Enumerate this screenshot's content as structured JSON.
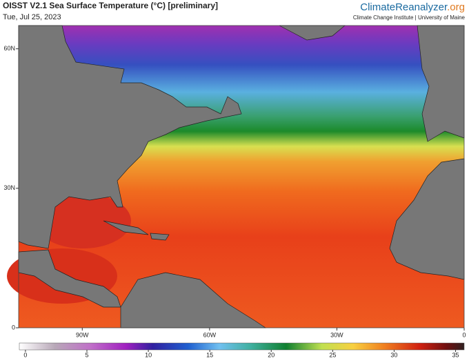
{
  "header": {
    "title": "OISST V2.1 Sea Surface Temperature (°C) [preliminary]",
    "date": "Tue, Jul 25, 2023",
    "brand": {
      "main": "ClimateReanalyzer",
      "suffix": ".org",
      "affiliation": "Climate Change Institute | University of Maine"
    }
  },
  "map": {
    "latlim": [
      0,
      65
    ],
    "lonlim": [
      -105,
      0
    ],
    "lat_ticks": [
      {
        "value": 60,
        "label": "60N"
      },
      {
        "value": 30,
        "label": "30N"
      },
      0
    ],
    "lon_ticks": [
      {
        "value": -90,
        "label": "90W"
      },
      {
        "value": -60,
        "label": "60W"
      },
      {
        "value": -30,
        "label": "30W"
      },
      0
    ]
  },
  "colorbar": {
    "lim": [
      -0.5,
      35.7
    ],
    "ticks": [
      0,
      5,
      10,
      15,
      20,
      25,
      30,
      35
    ]
  }
}
